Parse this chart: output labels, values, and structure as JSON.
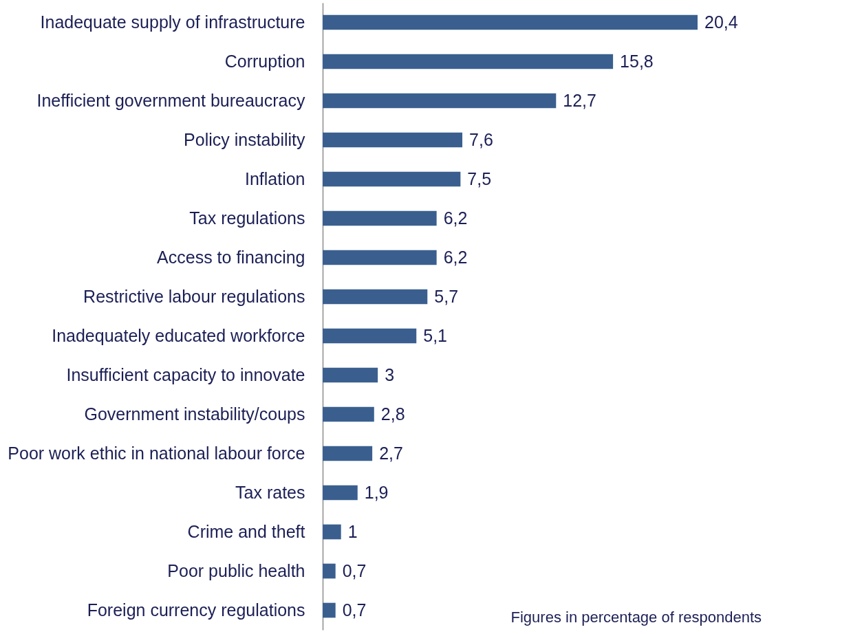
{
  "chart_data": {
    "type": "bar",
    "orientation": "horizontal",
    "color": "#3a5f8f",
    "categories": [
      "Inadequate supply of infrastructure",
      "Corruption",
      "Inefficient government bureaucracy",
      "Policy instability",
      "Inflation",
      "Tax regulations",
      "Access to financing",
      "Restrictive labour regulations",
      "Inadequately educated workforce",
      "Insufficient capacity to innovate",
      "Government instability/coups",
      "Poor work ethic in national labour force",
      "Tax rates",
      "Crime and theft",
      "Poor public health",
      "Foreign currency regulations"
    ],
    "values": [
      20.4,
      15.8,
      12.7,
      7.6,
      7.5,
      6.2,
      6.2,
      5.7,
      5.1,
      3,
      2.8,
      2.7,
      1.9,
      1,
      0.7,
      0.7
    ],
    "value_labels": [
      "20,4",
      "15,8",
      "12,7",
      "7,6",
      "7,5",
      "6,2",
      "6,2",
      "5,7",
      "5,1",
      "3",
      "2,8",
      "2,7",
      "1,9",
      "1",
      "0,7",
      "0,7"
    ],
    "annotations": [
      "Figures in percentage of respondents"
    ]
  }
}
